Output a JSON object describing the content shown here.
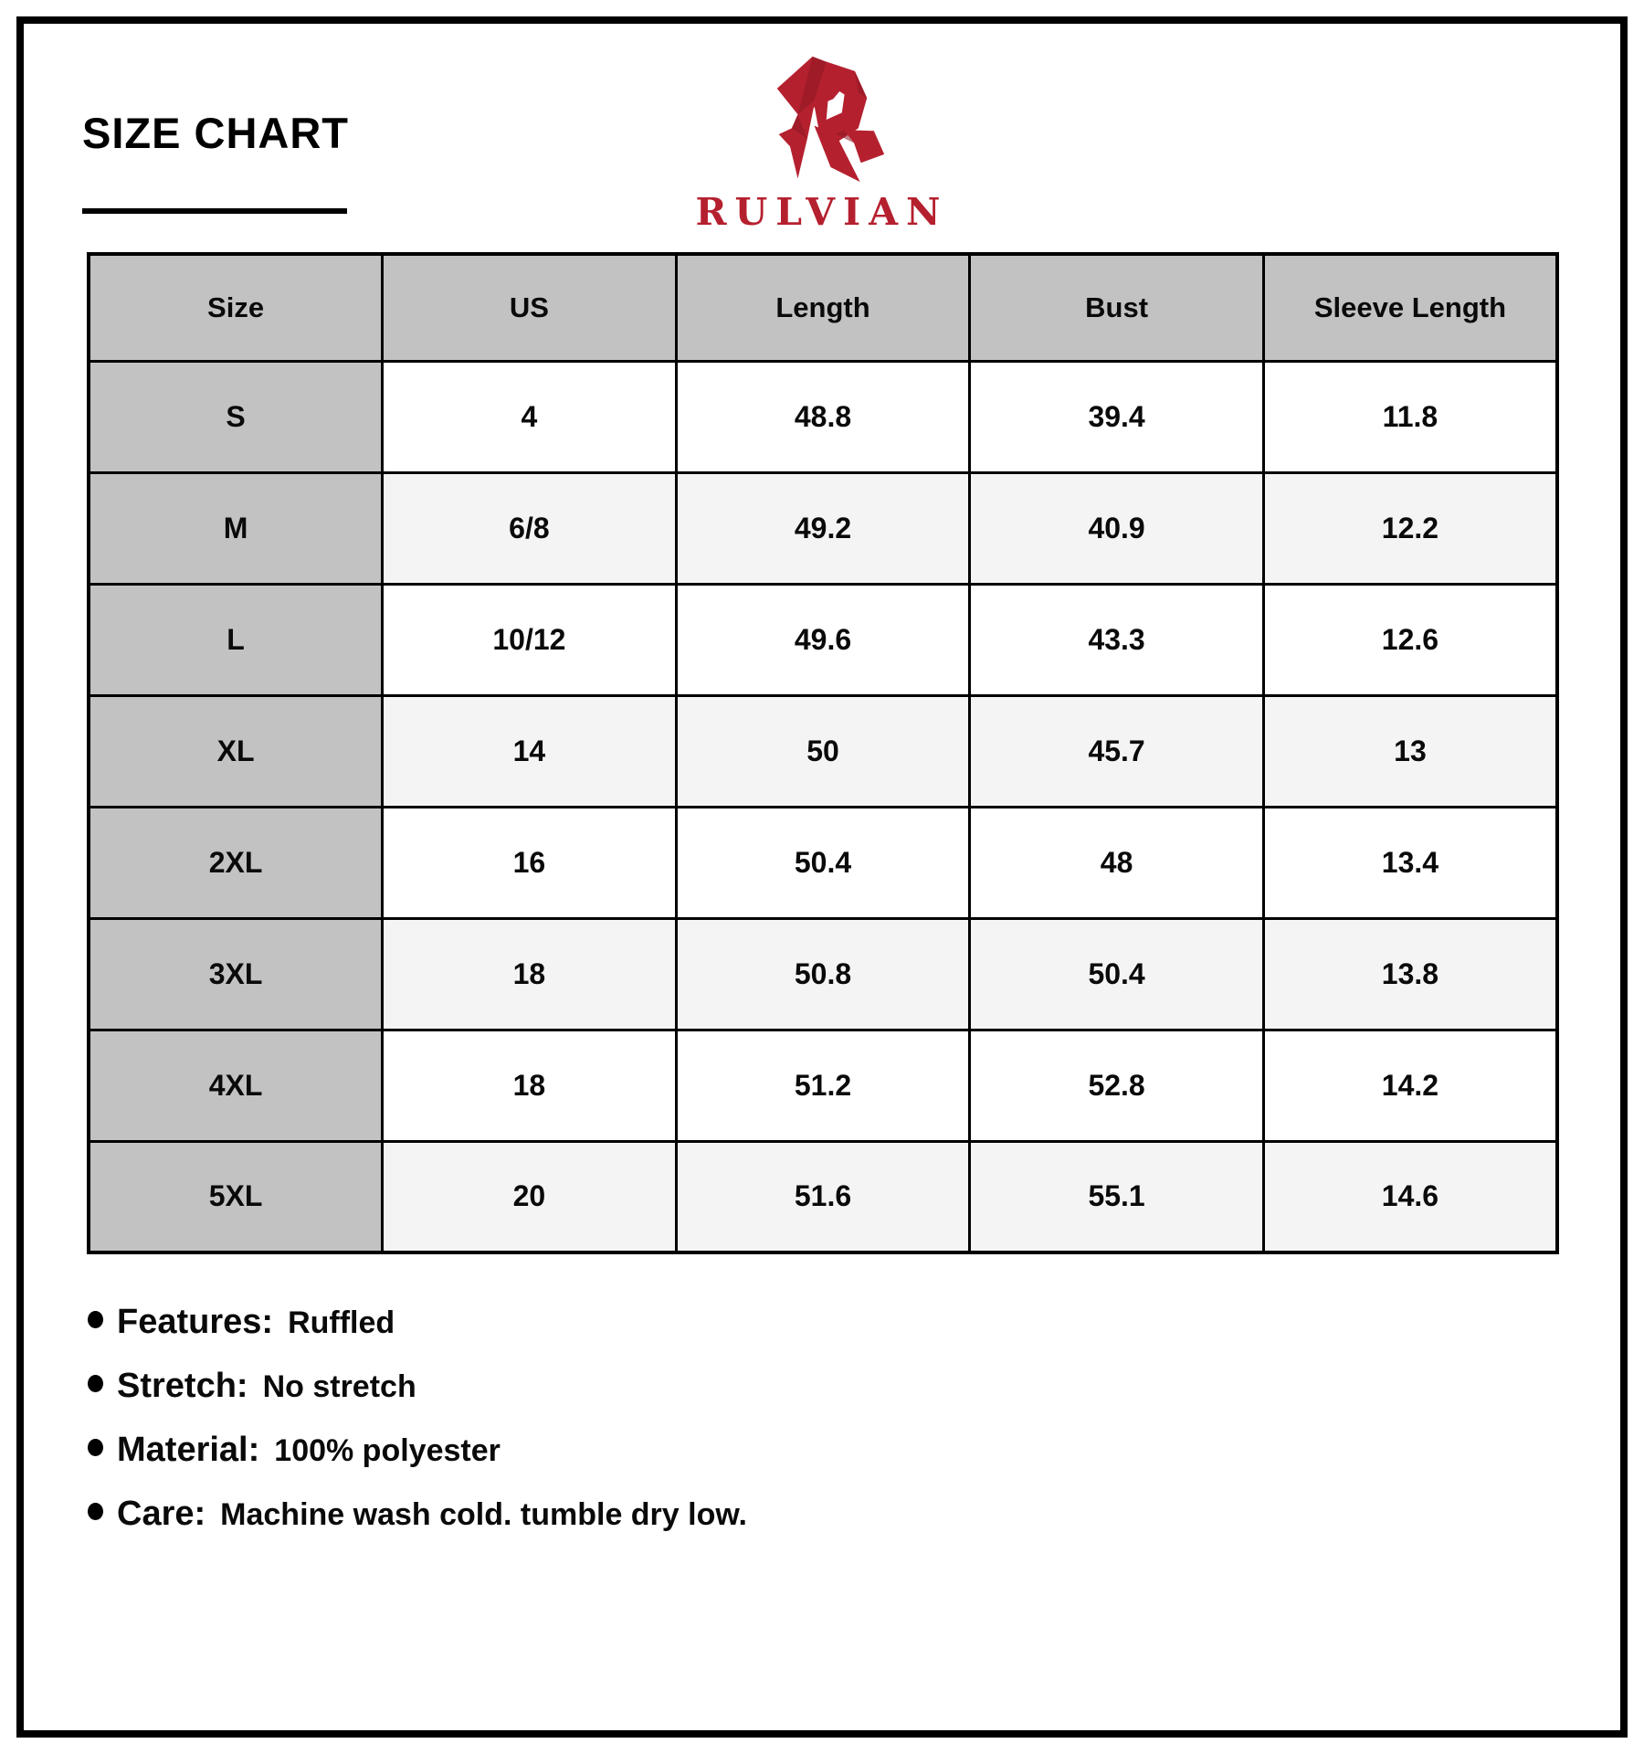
{
  "header": {
    "title": "SIZE CHART",
    "brand": "RULVIAN"
  },
  "logo": {
    "icon": "rulvian-r-mark",
    "color": "#B5202F",
    "shade_color": "#8E1824"
  },
  "table": {
    "columns": [
      "Size",
      "US",
      "Length",
      "Bust",
      "Sleeve Length"
    ],
    "rows": [
      [
        "S",
        "4",
        "48.8",
        "39.4",
        "11.8"
      ],
      [
        "M",
        "6/8",
        "49.2",
        "40.9",
        "12.2"
      ],
      [
        "L",
        "10/12",
        "49.6",
        "43.3",
        "12.6"
      ],
      [
        "XL",
        "14",
        "50",
        "45.7",
        "13"
      ],
      [
        "2XL",
        "16",
        "50.4",
        "48",
        "13.4"
      ],
      [
        "3XL",
        "18",
        "50.8",
        "50.4",
        "13.8"
      ],
      [
        "4XL",
        "18",
        "51.2",
        "52.8",
        "14.2"
      ],
      [
        "5XL",
        "20",
        "51.6",
        "55.1",
        "14.6"
      ]
    ]
  },
  "notes": [
    {
      "label": "Features:",
      "value": "Ruffled"
    },
    {
      "label": "Stretch:",
      "value": "No stretch"
    },
    {
      "label": "Material:",
      "value": "100% polyester"
    },
    {
      "label": "Care:",
      "value": "Machine wash cold. tumble dry low."
    }
  ],
  "colors": {
    "accent_red": "#B5202F",
    "header_gray": "#C2C2C2",
    "stripe_gray": "#F4F4F4",
    "border_black": "#000000"
  }
}
